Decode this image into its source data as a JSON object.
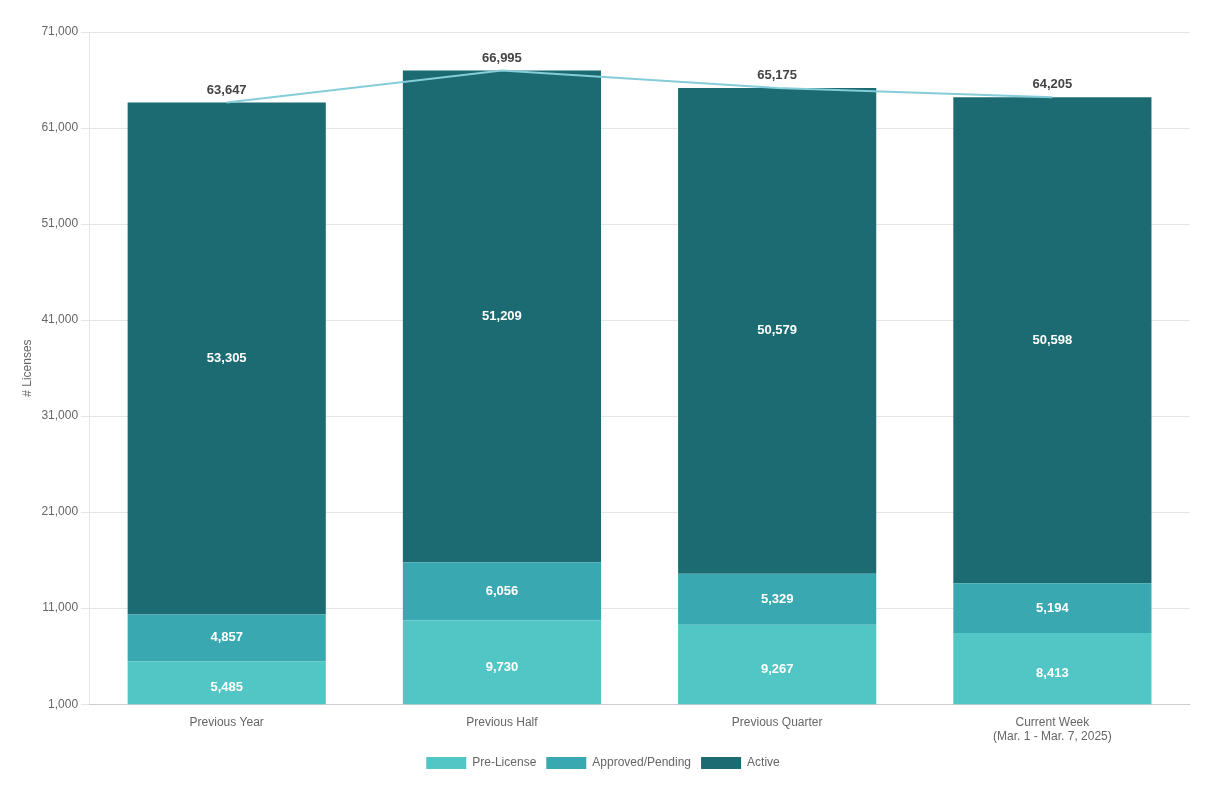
{
  "chart_data": {
    "type": "bar",
    "stacked": true,
    "ylabel": "# Licenses",
    "categories": [
      "Previous Year",
      "Previous Half",
      "Previous Quarter",
      "Current Week\n(Mar. 1 - Mar. 7, 2025)"
    ],
    "series": [
      {
        "name": "Pre-License",
        "color": "#52c5c5",
        "values": [
          5485,
          9730,
          9267,
          8413
        ],
        "value_labels": [
          "5,485",
          "9,730",
          "9,267",
          "8,413"
        ]
      },
      {
        "name": "Approved/Pending",
        "color": "#3aa8b0",
        "values": [
          4857,
          6056,
          5329,
          5194
        ],
        "value_labels": [
          "4,857",
          "6,056",
          "5,329",
          "5,194"
        ]
      },
      {
        "name": "Active",
        "color": "#1d6b72",
        "values": [
          53305,
          51209,
          50579,
          50598
        ],
        "value_labels": [
          "53,305",
          "51,209",
          "50,579",
          "50,598"
        ]
      },
      {
        "type": "line",
        "color": "#85cdd8",
        "marker": "none",
        "values": [
          63647,
          66995,
          65175,
          64205
        ],
        "value_labels": [
          "63,647",
          "66,995",
          "65,175",
          "64,205"
        ]
      }
    ],
    "ylim": [
      1000,
      71000
    ],
    "yticks": [
      {
        "value": 1000,
        "label": "1,000"
      },
      {
        "value": 11000,
        "label": "11,000"
      },
      {
        "value": 21000,
        "label": "21,000"
      },
      {
        "value": 31000,
        "label": "31,000"
      },
      {
        "value": 41000,
        "label": "41,000"
      },
      {
        "value": 51000,
        "label": "51,000"
      },
      {
        "value": 61000,
        "label": "61,000"
      },
      {
        "value": 71000,
        "label": "71,000"
      }
    ],
    "grid": true,
    "legend": "bottom",
    "data_labels": true
  }
}
